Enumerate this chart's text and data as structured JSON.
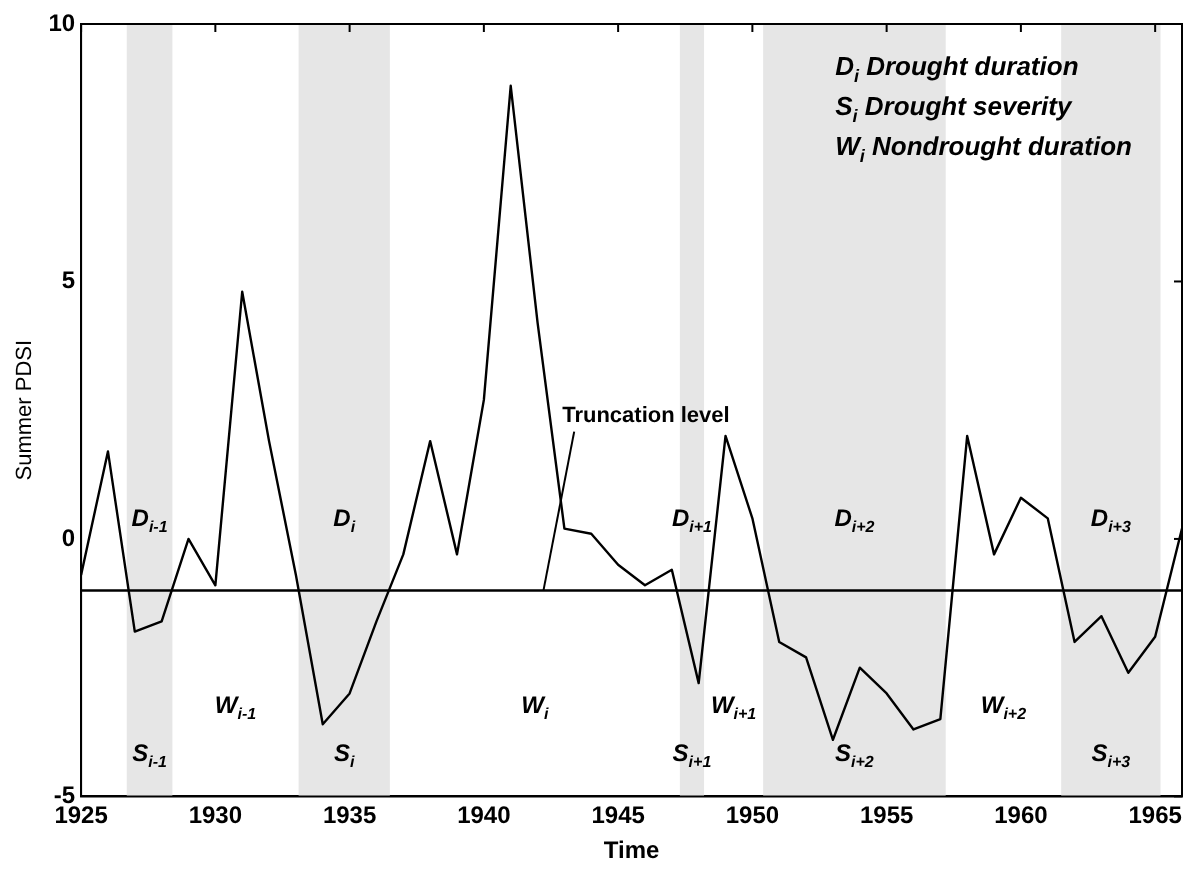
{
  "chart_data": {
    "type": "line",
    "xlabel": "Time",
    "ylabel": "Summer PDSI",
    "x": [
      1925,
      1926,
      1927,
      1928,
      1929,
      1930,
      1931,
      1932,
      1933,
      1934,
      1935,
      1936,
      1937,
      1938,
      1939,
      1940,
      1941,
      1942,
      1943,
      1944,
      1945,
      1946,
      1947,
      1948,
      1949,
      1950,
      1951,
      1952,
      1953,
      1954,
      1955,
      1956,
      1957,
      1958,
      1959,
      1960,
      1961,
      1962,
      1963,
      1964,
      1965,
      1966
    ],
    "series": [
      {
        "color": "#000000",
        "values": [
          -0.7,
          1.7,
          -1.8,
          -1.6,
          0,
          -0.9,
          4.8,
          1.9,
          -0.7,
          -3.6,
          -3.0,
          -1.6,
          -0.3,
          1.9,
          -0.3,
          2.7,
          8.8,
          4.2,
          0.2,
          0.1,
          -0.5,
          -0.9,
          -0.6,
          -2.8,
          2.0,
          0.4,
          -2.0,
          -2.3,
          -3.9,
          -2.5,
          -3.0,
          -3.7,
          -3.5,
          2.0,
          -0.3,
          0.8,
          0.4,
          -2.0,
          -1.5,
          -2.6,
          -1.9,
          0.2
        ]
      }
    ],
    "xlim": [
      1925,
      1966
    ],
    "xticks": [
      1925,
      1930,
      1935,
      1940,
      1945,
      1950,
      1955,
      1960,
      1965
    ],
    "ylim": [
      -5,
      10
    ],
    "yticks": [
      -5,
      0,
      5,
      10
    ],
    "grid": false,
    "legend": false,
    "marker": "none",
    "line_style": "solid",
    "ref_lines": [
      {
        "axis": "y",
        "value": -1,
        "label": "Truncation level",
        "color": "#000000"
      }
    ],
    "bands": [
      {
        "axis": "x",
        "from": 1926.7,
        "to": 1928.4,
        "label": "D$_{i-1}$",
        "color": "#e6e6e6"
      },
      {
        "axis": "x",
        "from": 1933.1,
        "to": 1936.5,
        "label": "D$_{i}$",
        "color": "#e6e6e6"
      },
      {
        "axis": "x",
        "from": 1947.3,
        "to": 1948.2,
        "label": "D$_{i+1}$",
        "color": "#e6e6e6"
      },
      {
        "axis": "x",
        "from": 1950.4,
        "to": 1957.2,
        "label": "D$_{i+2}$",
        "color": "#e6e6e6"
      },
      {
        "axis": "x",
        "from": 1961.5,
        "to": 1965.2,
        "label": "D$_{i+3}$",
        "color": "#e6e6e6"
      }
    ],
    "annotations": [
      "S$_{i-1}$",
      "S$_{i}$",
      "S$_{i+1}$",
      "S$_{i+2}$",
      "S$_{i+3}$",
      "W$_{i-1}$",
      "W$_{i}$",
      "W$_{i+1}$",
      "W$_{i+2}$",
      "D$_{i}$ Drought duration",
      "S$_{i}$ Drought severity",
      "W$_{i}$ Nondrought duration"
    ]
  }
}
